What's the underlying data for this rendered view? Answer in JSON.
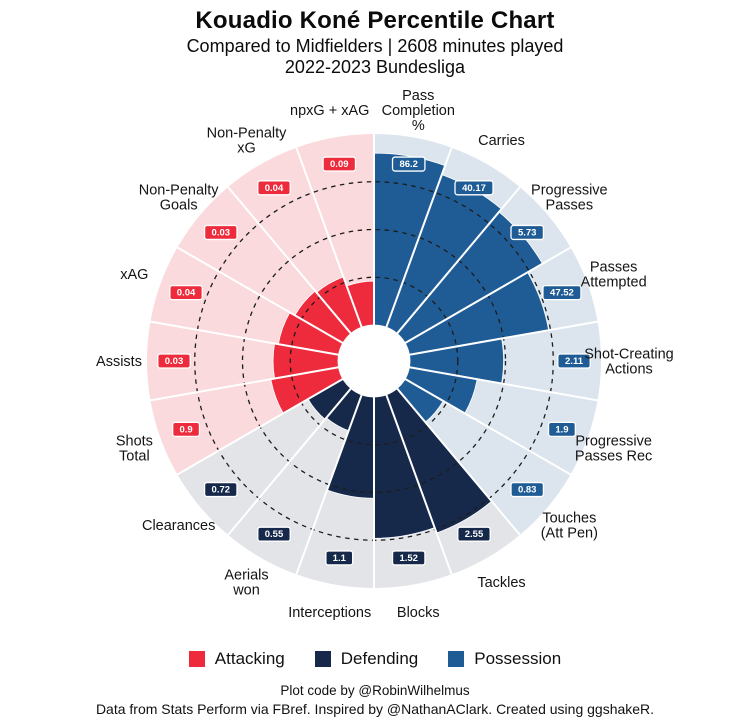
{
  "header": {
    "title": "Kouadio Koné Percentile Chart",
    "subtitle_line1": "Compared to Midfielders | 2608 minutes played",
    "subtitle_line2": "2022-2023 Bundesliga"
  },
  "legend": {
    "items": [
      {
        "label": "Attacking",
        "color": "#ee2b3c"
      },
      {
        "label": "Defending",
        "color": "#16294b"
      },
      {
        "label": "Possession",
        "color": "#1f5c96"
      }
    ]
  },
  "footer": {
    "line1": "Plot code by @RobinWilhelmus",
    "line2": "Data from Stats Perform via FBref. Inspired by @NathanAClark. Created using ggshakeR."
  },
  "chart_data": {
    "type": "bar",
    "polar": true,
    "title": "Kouadio Koné Percentile Chart",
    "ylabel": "percentile",
    "ylim": [
      0,
      100
    ],
    "rings": [
      25,
      50,
      75
    ],
    "grid": "dashed",
    "legend_position": "bottom",
    "groups": {
      "Attacking": {
        "color": "#ee2b3c",
        "bg": "#fadadd"
      },
      "Defending": {
        "color": "#16294b",
        "bg": "#e2e4e8"
      },
      "Possession": {
        "color": "#1f5c96",
        "bg": "#dce5ee"
      }
    },
    "slices": [
      {
        "label": [
          "Pass",
          "Completion",
          "%"
        ],
        "group": "Possession",
        "value": "86.2",
        "percentile": 90
      },
      {
        "label": [
          "Carries"
        ],
        "group": "Possession",
        "value": "40.17",
        "percentile": 85
      },
      {
        "label": [
          "Progressive",
          "Passes"
        ],
        "group": "Possession",
        "value": "5.73",
        "percentile": 83
      },
      {
        "label": [
          "Passes",
          "Attempted"
        ],
        "group": "Possession",
        "value": "47.52",
        "percentile": 74
      },
      {
        "label": [
          "Shot-Creating",
          "Actions"
        ],
        "group": "Possession",
        "value": "2.11",
        "percentile": 49
      },
      {
        "label": [
          "Progressive",
          "Passes Rec"
        ],
        "group": "Possession",
        "value": "1.9",
        "percentile": 36
      },
      {
        "label": [
          "Touches",
          "(Att Pen)"
        ],
        "group": "Possession",
        "value": "0.83",
        "percentile": 23
      },
      {
        "label": [
          "Tackles"
        ],
        "group": "Defending",
        "value": "2.55",
        "percentile": 77
      },
      {
        "label": [
          "Blocks"
        ],
        "group": "Defending",
        "value": "1.52",
        "percentile": 74
      },
      {
        "label": [
          "Interceptions"
        ],
        "group": "Defending",
        "value": "1.1",
        "percentile": 53
      },
      {
        "label": [
          "Aerials",
          "won"
        ],
        "group": "Defending",
        "value": "0.55",
        "percentile": 20
      },
      {
        "label": [
          "Clearances"
        ],
        "group": "Defending",
        "value": "0.72",
        "percentile": 21
      },
      {
        "label": [
          "Shots",
          "Total"
        ],
        "group": "Attacking",
        "value": "0.9",
        "percentile": 36
      },
      {
        "label": [
          "Assists"
        ],
        "group": "Attacking",
        "value": "0.03",
        "percentile": 34
      },
      {
        "label": [
          "xAG"
        ],
        "group": "Attacking",
        "value": "0.04",
        "percentile": 32
      },
      {
        "label": [
          "Non-Penalty",
          "Goals"
        ],
        "group": "Attacking",
        "value": "0.03",
        "percentile": 29
      },
      {
        "label": [
          "Non-Penalty",
          "xG"
        ],
        "group": "Attacking",
        "value": "0.04",
        "percentile": 28
      },
      {
        "label": [
          "npxG + xAG"
        ],
        "group": "Attacking",
        "value": "0.09",
        "percentile": 23
      }
    ]
  }
}
